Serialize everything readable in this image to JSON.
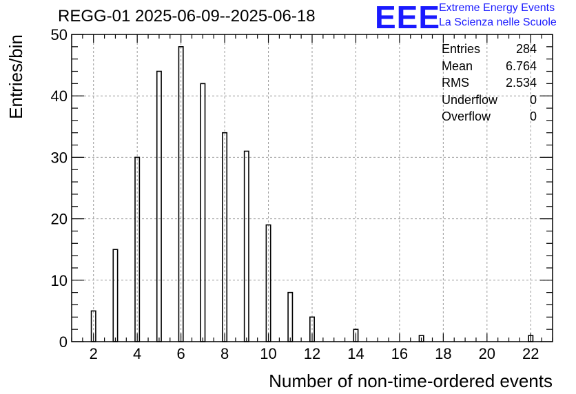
{
  "header": {
    "title": "REGG-01 2025-06-09--2025-06-18",
    "logo_mark": "EEE",
    "logo_line1": "Extreme Energy Events",
    "logo_line2": "La Scienza nelle Scuole",
    "logo_color": "#1a1aff"
  },
  "stats_box": {
    "rows": [
      {
        "label": "Entries",
        "value": "284"
      },
      {
        "label": "Mean",
        "value": "6.764"
      },
      {
        "label": "RMS",
        "value": "2.534"
      },
      {
        "label": "Underflow",
        "value": "0"
      },
      {
        "label": "Overflow",
        "value": "0"
      }
    ]
  },
  "chart_data": {
    "type": "bar",
    "title": "REGG-01 2025-06-09--2025-06-18",
    "xlabel": "Number of non-time-ordered events",
    "ylabel": "Entries/bin",
    "xlim": [
      1,
      23
    ],
    "ylim": [
      0,
      50
    ],
    "x_ticks": [
      2,
      4,
      6,
      8,
      10,
      12,
      14,
      16,
      18,
      20,
      22
    ],
    "y_ticks": [
      0,
      10,
      20,
      30,
      40,
      50
    ],
    "grid": true,
    "x": [
      2,
      3,
      4,
      5,
      6,
      7,
      8,
      9,
      10,
      11,
      12,
      14,
      17,
      22
    ],
    "values": [
      5,
      15,
      30,
      44,
      48,
      42,
      34,
      31,
      19,
      8,
      4,
      2,
      1,
      1
    ],
    "bar_style": "hollow black outline"
  }
}
